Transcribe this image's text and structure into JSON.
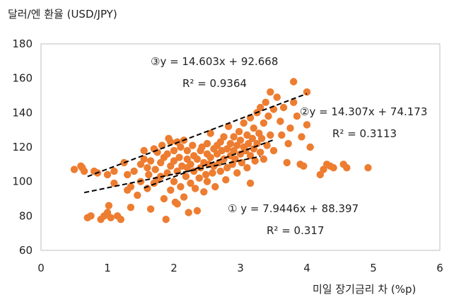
{
  "chart_data": {
    "type": "scatter",
    "title": "",
    "ylabel": "달러/엔 환율 (USD/JPY)",
    "xlabel": "미일 장기금리 차 (%p)",
    "xlim": [
      0,
      6
    ],
    "ylim": [
      60,
      180
    ],
    "x_ticks": [
      "0",
      "1",
      "2",
      "3",
      "4",
      "5",
      "6"
    ],
    "y_ticks": [
      "60",
      "80",
      "100",
      "120",
      "140",
      "160",
      "180"
    ],
    "grid": false,
    "marker_color": "#ED7D31",
    "trend_color": "#000000",
    "series": [
      {
        "points": [
          [
            0.5,
            107
          ],
          [
            0.6,
            109
          ],
          [
            0.62,
            108
          ],
          [
            0.65,
            106
          ],
          [
            0.7,
            79
          ],
          [
            0.75,
            80
          ],
          [
            0.8,
            106
          ],
          [
            0.85,
            105
          ],
          [
            0.9,
            78
          ],
          [
            0.95,
            80
          ],
          [
            1.0,
            82
          ],
          [
            1.0,
            104
          ],
          [
            1.02,
            86
          ],
          [
            1.05,
            79
          ],
          [
            1.1,
            99
          ],
          [
            1.1,
            106
          ],
          [
            1.15,
            80
          ],
          [
            1.2,
            78
          ],
          [
            1.25,
            111
          ],
          [
            1.3,
            95
          ],
          [
            1.3,
            104
          ],
          [
            1.35,
            85
          ],
          [
            1.35,
            97
          ],
          [
            1.4,
            106
          ],
          [
            1.45,
            92
          ],
          [
            1.5,
            100
          ],
          [
            1.5,
            110
          ],
          [
            1.55,
            113
          ],
          [
            1.55,
            118
          ],
          [
            1.6,
            96
          ],
          [
            1.6,
            108
          ],
          [
            1.62,
            104
          ],
          [
            1.65,
            112
          ],
          [
            1.65,
            84
          ],
          [
            1.7,
            99
          ],
          [
            1.7,
            119
          ],
          [
            1.72,
            107
          ],
          [
            1.75,
            117
          ],
          [
            1.75,
            101
          ],
          [
            1.8,
            103
          ],
          [
            1.8,
            111
          ],
          [
            1.82,
            121
          ],
          [
            1.85,
            114
          ],
          [
            1.85,
            90
          ],
          [
            1.88,
            78
          ],
          [
            1.9,
            116
          ],
          [
            1.9,
            105
          ],
          [
            1.92,
            125
          ],
          [
            1.95,
            109
          ],
          [
            1.95,
            95
          ],
          [
            2.0,
            118
          ],
          [
            2.0,
            112
          ],
          [
            2.0,
            100
          ],
          [
            2.02,
            88
          ],
          [
            2.05,
            123
          ],
          [
            2.05,
            106
          ],
          [
            2.08,
            114
          ],
          [
            2.1,
            97
          ],
          [
            2.1,
            120
          ],
          [
            2.12,
            109
          ],
          [
            2.15,
            124
          ],
          [
            2.15,
            91
          ],
          [
            2.18,
            103
          ],
          [
            2.2,
            113
          ],
          [
            2.2,
            118
          ],
          [
            2.22,
            82
          ],
          [
            2.25,
            99
          ],
          [
            2.25,
            110
          ],
          [
            2.28,
            121
          ],
          [
            2.3,
            106
          ],
          [
            2.3,
            115
          ],
          [
            2.32,
            96
          ],
          [
            2.35,
            113
          ],
          [
            2.35,
            83
          ],
          [
            2.38,
            102
          ],
          [
            2.4,
            118
          ],
          [
            2.4,
            108
          ],
          [
            2.42,
            120
          ],
          [
            2.45,
            94
          ],
          [
            2.45,
            111
          ],
          [
            2.48,
            104
          ],
          [
            2.5,
            116
          ],
          [
            2.5,
            122
          ],
          [
            2.5,
            100
          ],
          [
            2.52,
            110
          ],
          [
            2.55,
            128
          ],
          [
            2.55,
            114
          ],
          [
            2.58,
            105
          ],
          [
            2.6,
            119
          ],
          [
            2.6,
            109
          ],
          [
            2.62,
            97
          ],
          [
            2.65,
            116
          ],
          [
            2.65,
            121
          ],
          [
            2.68,
            111
          ],
          [
            2.7,
            123
          ],
          [
            2.7,
            106
          ],
          [
            2.72,
            118
          ],
          [
            2.75,
            126
          ],
          [
            2.75,
            113
          ],
          [
            2.78,
            101
          ],
          [
            2.8,
            119
          ],
          [
            2.8,
            108
          ],
          [
            2.82,
            132
          ],
          [
            2.85,
            115
          ],
          [
            2.85,
            122
          ],
          [
            2.88,
            110
          ],
          [
            2.9,
            118
          ],
          [
            2.9,
            126
          ],
          [
            2.92,
            113
          ],
          [
            2.95,
            121
          ],
          [
            2.95,
            105
          ],
          [
            2.98,
            129
          ],
          [
            3.0,
            116
          ],
          [
            3.0,
            124
          ],
          [
            3.02,
            111
          ],
          [
            3.05,
            120
          ],
          [
            3.05,
            134
          ],
          [
            3.08,
            118
          ],
          [
            3.1,
            127
          ],
          [
            3.1,
            108
          ],
          [
            3.12,
            122
          ],
          [
            3.15,
            137
          ],
          [
            3.15,
            115
          ],
          [
            3.18,
            125
          ],
          [
            3.2,
            119
          ],
          [
            3.2,
            131
          ],
          [
            3.22,
            112
          ],
          [
            3.25,
            140
          ],
          [
            3.25,
            122
          ],
          [
            3.28,
            128
          ],
          [
            3.3,
            117
          ],
          [
            3.3,
            143
          ],
          [
            3.32,
            125
          ],
          [
            3.35,
            134
          ],
          [
            3.35,
            113
          ],
          [
            3.38,
            146
          ],
          [
            3.4,
            121
          ],
          [
            3.42,
            138
          ],
          [
            3.45,
            152
          ],
          [
            3.45,
            127
          ],
          [
            3.5,
            142
          ],
          [
            3.5,
            118
          ],
          [
            3.55,
            149
          ],
          [
            3.6,
            135
          ],
          [
            3.62,
            127
          ],
          [
            3.65,
            143
          ],
          [
            3.7,
            111
          ],
          [
            3.72,
            122
          ],
          [
            3.75,
            131
          ],
          [
            3.8,
            146
          ],
          [
            3.8,
            158
          ],
          [
            3.85,
            138
          ],
          [
            3.9,
            110
          ],
          [
            3.92,
            126
          ],
          [
            3.95,
            109
          ],
          [
            4.0,
            152
          ],
          [
            4.0,
            133
          ],
          [
            4.05,
            120
          ],
          [
            4.2,
            104
          ],
          [
            4.25,
            107
          ],
          [
            4.3,
            110
          ],
          [
            4.35,
            109
          ],
          [
            4.4,
            108
          ],
          [
            4.55,
            110
          ],
          [
            4.6,
            108
          ],
          [
            4.92,
            108
          ],
          [
            3.15,
            99
          ],
          [
            2.2,
            108
          ],
          [
            1.95,
            123
          ],
          [
            2.05,
            87
          ]
        ]
      }
    ],
    "trend_lines": [
      {
        "label": "① y = 7.9446x + 88.397",
        "r2": "R² = 0.317",
        "slope": 7.9446,
        "intercept": 88.397,
        "x_range": [
          0.65,
          3.3
        ]
      },
      {
        "label": "②y = 14.307x + 74.173",
        "r2": "R² = 0.3113",
        "slope": 14.307,
        "intercept": 74.173,
        "x_range": [
          1.55,
          3.5
        ]
      },
      {
        "label": "③y = 14.603x + 92.668",
        "r2": "R² = 0.9364",
        "slope": 14.603,
        "intercept": 92.668,
        "x_range": [
          0.7,
          4.0
        ]
      }
    ]
  }
}
